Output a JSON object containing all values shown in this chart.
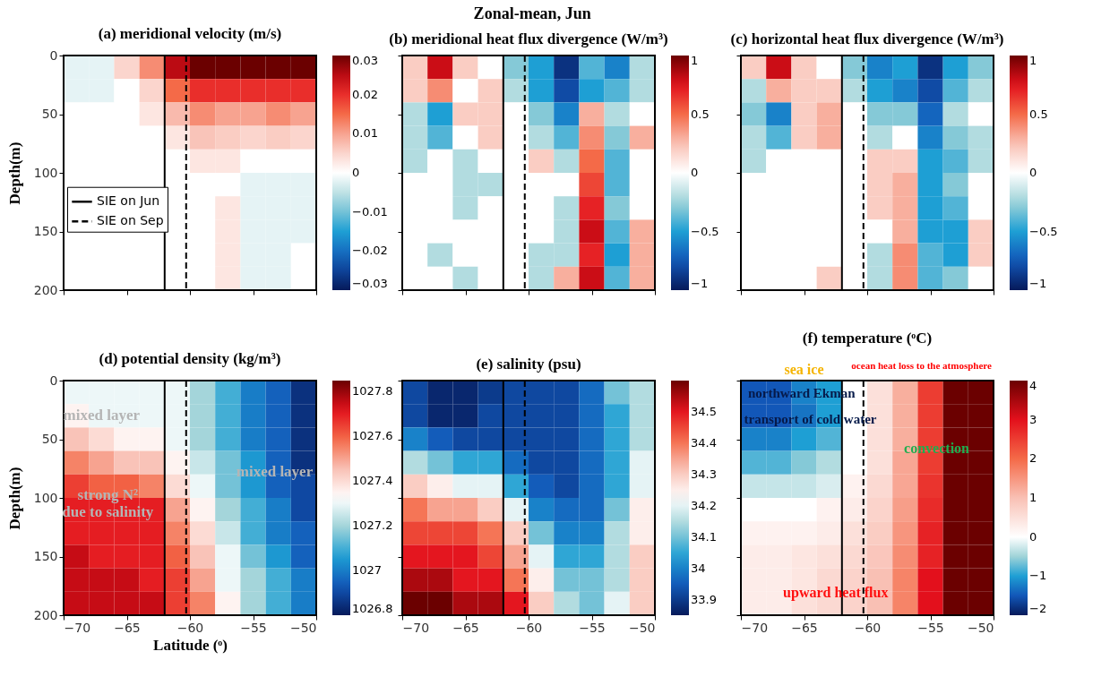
{
  "chart_data": [
    {
      "type": "other",
      "title": "Zonal-mean, Jun"
    },
    {
      "type": "heatmap",
      "title": "(a) meridional velocity (m/s)",
      "ylabel": "Depth(m)",
      "tick_labels": "y",
      "x": [
        -69,
        -67,
        -65,
        -63,
        -61,
        -59,
        -57,
        -55,
        -53,
        -51
      ],
      "y": [
        10,
        30,
        50,
        70,
        90,
        110,
        130,
        150,
        170,
        190
      ],
      "xlim": [
        -70,
        -50
      ],
      "xticks": [
        -70,
        -65,
        -60,
        -55,
        -50
      ],
      "ylim": [
        200,
        0
      ],
      "yticks": [
        0,
        50,
        100,
        150,
        200
      ],
      "clim": [
        -0.03,
        0.03
      ],
      "cticks": [
        -0.03,
        -0.02,
        -0.01,
        0,
        0.01,
        0.02,
        0.03
      ],
      "cells": [
        [
          -0.002,
          -0.002,
          0.005,
          0.012,
          0.025,
          0.03,
          0.03,
          0.03,
          0.03,
          0.03
        ],
        [
          -0.002,
          -0.002,
          0,
          0.005,
          0.015,
          0.02,
          0.02,
          0.02,
          0.02,
          0.02
        ],
        [
          0,
          0,
          0,
          0.003,
          0.008,
          0.012,
          0.01,
          0.01,
          0.012,
          0.01
        ],
        [
          0,
          0,
          0,
          0,
          0.003,
          0.007,
          0.006,
          0.005,
          0.006,
          0.005
        ],
        [
          0,
          0,
          0,
          0,
          0,
          0.003,
          0.003,
          0,
          0,
          0
        ],
        [
          0,
          0,
          0,
          0,
          0,
          0,
          0,
          -0.002,
          -0.002,
          -0.002
        ],
        [
          0,
          0,
          0,
          0,
          0,
          0,
          0.003,
          -0.002,
          -0.002,
          -0.002
        ],
        [
          0,
          0,
          0,
          0,
          0,
          0,
          0.003,
          -0.002,
          -0.002,
          -0.002
        ],
        [
          0,
          0,
          0,
          0,
          0,
          0,
          0.003,
          -0.002,
          -0.002,
          0
        ],
        [
          0,
          0,
          0,
          0,
          0,
          0,
          0.003,
          -0.002,
          -0.002,
          0
        ]
      ],
      "ref_lines": [
        {
          "axis": "x",
          "value": -62,
          "label": "SIE on Jun",
          "line_style": "solid"
        },
        {
          "axis": "x",
          "value": -60.3,
          "label": "SIE on Sep",
          "line_style": "dashed"
        }
      ]
    },
    {
      "type": "heatmap",
      "title": "(b) meridional heat flux divergence (W/m³)",
      "tick_labels": false,
      "x": [
        -69,
        -67,
        -65,
        -63,
        -61,
        -59,
        -57,
        -55,
        -53,
        -51
      ],
      "y": [
        10,
        30,
        50,
        70,
        90,
        110,
        130,
        150,
        170,
        190
      ],
      "xlim": [
        -70,
        -50
      ],
      "xticks": [
        -70,
        -65,
        -60,
        -55,
        -50
      ],
      "ylim": [
        200,
        0
      ],
      "yticks": [
        0,
        50,
        100,
        150,
        200
      ],
      "clim": [
        -1,
        1
      ],
      "cticks": [
        -1,
        -0.5,
        0,
        0.5,
        1
      ],
      "cells": [
        [
          0.2,
          0.8,
          0.2,
          0,
          -0.3,
          -0.5,
          -0.9,
          -0.4,
          -0.6,
          -0.2
        ],
        [
          0.2,
          0.4,
          0,
          0.2,
          -0.2,
          -0.5,
          -0.8,
          -0.5,
          -0.4,
          -0.2
        ],
        [
          -0.2,
          -0.5,
          0.2,
          0.2,
          0,
          -0.3,
          -0.6,
          0.3,
          -0.2,
          0
        ],
        [
          -0.2,
          -0.4,
          0,
          0.2,
          0,
          -0.2,
          -0.4,
          0.4,
          -0.3,
          0.3
        ],
        [
          -0.2,
          0,
          -0.2,
          0,
          0,
          0.2,
          -0.2,
          0.5,
          -0.4,
          0
        ],
        [
          0,
          0,
          -0.2,
          -0.2,
          0,
          0,
          0,
          0.6,
          -0.4,
          0
        ],
        [
          0,
          0,
          -0.2,
          0,
          0,
          0,
          -0.2,
          0.7,
          -0.3,
          0
        ],
        [
          0,
          0,
          0,
          0,
          0,
          0,
          -0.2,
          0.8,
          -0.4,
          0.3
        ],
        [
          0,
          -0.2,
          0,
          0,
          0,
          -0.2,
          -0.2,
          0.7,
          -0.5,
          0.3
        ],
        [
          0,
          0,
          -0.2,
          0,
          0,
          -0.2,
          0.3,
          0.8,
          -0.4,
          0.3
        ]
      ],
      "ref_lines": [
        {
          "axis": "x",
          "value": -62,
          "line_style": "solid"
        },
        {
          "axis": "x",
          "value": -60.3,
          "line_style": "dashed"
        }
      ]
    },
    {
      "type": "heatmap",
      "title": "(c) horizontal heat flux divergence (W/m³)",
      "tick_labels": false,
      "x": [
        -69,
        -67,
        -65,
        -63,
        -61,
        -59,
        -57,
        -55,
        -53,
        -51
      ],
      "y": [
        10,
        30,
        50,
        70,
        90,
        110,
        130,
        150,
        170,
        190
      ],
      "xlim": [
        -70,
        -50
      ],
      "xticks": [
        -70,
        -65,
        -60,
        -55,
        -50
      ],
      "ylim": [
        200,
        0
      ],
      "yticks": [
        0,
        50,
        100,
        150,
        200
      ],
      "clim": [
        -1,
        1
      ],
      "cticks": [
        -1,
        -0.5,
        0,
        0.5,
        1
      ],
      "cells": [
        [
          0.2,
          0.8,
          0.2,
          0,
          -0.3,
          -0.6,
          -0.5,
          -0.9,
          -0.5,
          -0.3
        ],
        [
          -0.2,
          0.3,
          0.2,
          0.2,
          -0.2,
          -0.5,
          -0.6,
          -0.8,
          -0.4,
          -0.2
        ],
        [
          -0.3,
          -0.6,
          0.2,
          0.3,
          0,
          -0.3,
          -0.3,
          -0.7,
          -0.2,
          0
        ],
        [
          -0.2,
          -0.4,
          0.2,
          0.3,
          0,
          -0.2,
          0,
          -0.6,
          -0.3,
          -0.2
        ],
        [
          -0.2,
          0,
          0,
          0,
          0,
          0.2,
          0.2,
          -0.5,
          -0.4,
          -0.2
        ],
        [
          0,
          0,
          0,
          0,
          0,
          0.2,
          0.3,
          -0.5,
          -0.3,
          0
        ],
        [
          0,
          0,
          0,
          0,
          0,
          0.2,
          0.3,
          -0.5,
          -0.4,
          0
        ],
        [
          0,
          0,
          0,
          0,
          0,
          0,
          0.3,
          -0.5,
          -0.5,
          0.2
        ],
        [
          0,
          0,
          0,
          0,
          0,
          -0.2,
          0.4,
          -0.4,
          -0.5,
          0.2
        ],
        [
          0,
          0,
          0,
          0.2,
          0,
          -0.2,
          0.4,
          -0.4,
          -0.3,
          0
        ]
      ],
      "ref_lines": [
        {
          "axis": "x",
          "value": -62,
          "line_style": "solid"
        },
        {
          "axis": "x",
          "value": -60.3,
          "line_style": "dashed"
        }
      ]
    },
    {
      "type": "heatmap",
      "title": "(d) potential density (kg/m³)",
      "xlabel": "Latitude (ᵒ)",
      "ylabel": "Depth(m)",
      "x": [
        -69,
        -67,
        -65,
        -63,
        -61,
        -59,
        -57,
        -55,
        -53,
        -51
      ],
      "y": [
        10,
        30,
        50,
        70,
        90,
        110,
        130,
        150,
        170,
        190
      ],
      "xlim": [
        -70,
        -50
      ],
      "xticks": [
        -70,
        -65,
        -60,
        -55,
        -50
      ],
      "ylim": [
        200,
        0
      ],
      "yticks": [
        0,
        50,
        100,
        150,
        200
      ],
      "clim": [
        1026.8,
        1027.85
      ],
      "cticks": [
        1026.8,
        1027,
        1027.2,
        1027.4,
        1027.6,
        1027.8
      ],
      "cells": [
        [
          1027.3,
          1027.3,
          1027.3,
          1027.3,
          1027.3,
          1027.2,
          1027.1,
          1027.0,
          1026.95,
          1026.85
        ],
        [
          1027.35,
          1027.3,
          1027.3,
          1027.3,
          1027.3,
          1027.2,
          1027.1,
          1027.0,
          1026.95,
          1026.85
        ],
        [
          1027.45,
          1027.4,
          1027.35,
          1027.35,
          1027.3,
          1027.2,
          1027.1,
          1027.0,
          1026.95,
          1026.85
        ],
        [
          1027.55,
          1027.5,
          1027.45,
          1027.45,
          1027.35,
          1027.25,
          1027.15,
          1027.05,
          1026.95,
          1026.85
        ],
        [
          1027.65,
          1027.6,
          1027.6,
          1027.55,
          1027.4,
          1027.3,
          1027.15,
          1027.05,
          1026.95,
          1026.9
        ],
        [
          1027.7,
          1027.7,
          1027.7,
          1027.7,
          1027.5,
          1027.35,
          1027.2,
          1027.1,
          1027.0,
          1026.9
        ],
        [
          1027.7,
          1027.7,
          1027.7,
          1027.7,
          1027.55,
          1027.4,
          1027.25,
          1027.1,
          1027.0,
          1026.95
        ],
        [
          1027.75,
          1027.7,
          1027.7,
          1027.7,
          1027.6,
          1027.45,
          1027.3,
          1027.15,
          1027.05,
          1026.95
        ],
        [
          1027.75,
          1027.75,
          1027.75,
          1027.7,
          1027.65,
          1027.5,
          1027.3,
          1027.2,
          1027.1,
          1027.0
        ],
        [
          1027.75,
          1027.75,
          1027.75,
          1027.75,
          1027.65,
          1027.55,
          1027.35,
          1027.2,
          1027.1,
          1027.0
        ]
      ],
      "ref_lines": [
        {
          "axis": "x",
          "value": -62,
          "line_style": "solid"
        },
        {
          "axis": "x",
          "value": -60.3,
          "line_style": "dashed"
        }
      ],
      "annotations": [
        "mixed layer",
        "mixed layer",
        "strong N²\ndue to salinity"
      ]
    },
    {
      "type": "heatmap",
      "title": "(e) salinity (psu)",
      "tick_labels": "x",
      "x": [
        -69,
        -67,
        -65,
        -63,
        -61,
        -59,
        -57,
        -55,
        -53,
        -51
      ],
      "y": [
        10,
        30,
        50,
        70,
        90,
        110,
        130,
        150,
        170,
        190
      ],
      "xlim": [
        -70,
        -50
      ],
      "xticks": [
        -70,
        -65,
        -60,
        -55,
        -50
      ],
      "ylim": [
        200,
        0
      ],
      "yticks": [
        0,
        50,
        100,
        150,
        200
      ],
      "clim": [
        33.85,
        34.6
      ],
      "cticks": [
        33.9,
        34,
        34.1,
        34.2,
        34.3,
        34.4,
        34.5
      ],
      "cells": [
        [
          33.92,
          33.87,
          33.87,
          33.9,
          33.92,
          33.92,
          33.92,
          33.97,
          34.1,
          34.15
        ],
        [
          33.92,
          33.87,
          33.87,
          33.92,
          33.92,
          33.92,
          33.92,
          33.97,
          34.05,
          34.15
        ],
        [
          34.0,
          33.95,
          33.92,
          33.92,
          33.92,
          33.92,
          33.92,
          33.97,
          34.05,
          34.15
        ],
        [
          34.15,
          34.1,
          34.05,
          34.05,
          33.97,
          33.92,
          33.92,
          33.97,
          34.05,
          34.2
        ],
        [
          34.3,
          34.25,
          34.2,
          34.2,
          34.05,
          33.95,
          33.92,
          33.97,
          34.05,
          34.2
        ],
        [
          34.4,
          34.35,
          34.35,
          34.3,
          34.2,
          34.0,
          33.97,
          33.97,
          34.1,
          34.25
        ],
        [
          34.45,
          34.45,
          34.45,
          34.4,
          34.3,
          34.1,
          34.0,
          34.0,
          34.15,
          34.25
        ],
        [
          34.5,
          34.5,
          34.5,
          34.45,
          34.35,
          34.2,
          34.05,
          34.05,
          34.15,
          34.3
        ],
        [
          34.55,
          34.55,
          34.5,
          34.5,
          34.4,
          34.25,
          34.1,
          34.1,
          34.15,
          34.3
        ],
        [
          34.6,
          34.6,
          34.55,
          34.55,
          34.5,
          34.3,
          34.15,
          34.1,
          34.2,
          34.3
        ]
      ],
      "ref_lines": [
        {
          "axis": "x",
          "value": -62,
          "line_style": "solid"
        },
        {
          "axis": "x",
          "value": -60.3,
          "line_style": "dashed"
        }
      ]
    },
    {
      "type": "heatmap",
      "title": "(f) temperature (ᵒC)",
      "tick_labels": "x",
      "x": [
        -69,
        -67,
        -65,
        -63,
        -61,
        -59,
        -57,
        -55,
        -53,
        -51
      ],
      "y": [
        10,
        30,
        50,
        70,
        90,
        110,
        130,
        150,
        170,
        190
      ],
      "xlim": [
        -70,
        -50
      ],
      "xticks": [
        -70,
        -65,
        -60,
        -55,
        -50
      ],
      "ylim": [
        200,
        0
      ],
      "yticks": [
        0,
        50,
        100,
        150,
        200
      ],
      "clim": [
        -2,
        4
      ],
      "cticks": [
        -2,
        -1,
        0,
        1,
        2,
        3,
        4
      ],
      "cells": [
        [
          -1.5,
          -1.5,
          -1.2,
          -1.0,
          0,
          0.5,
          1.2,
          2.5,
          4,
          4
        ],
        [
          -1.5,
          -1.5,
          -1.3,
          -1.0,
          0,
          0.5,
          1.2,
          2.5,
          4,
          4
        ],
        [
          -1.2,
          -1.2,
          -1,
          -0.8,
          0,
          0.5,
          1.2,
          2.5,
          4,
          4
        ],
        [
          -0.8,
          -0.8,
          -0.6,
          -0.4,
          0,
          0.5,
          1.3,
          2.5,
          4,
          4
        ],
        [
          -0.3,
          -0.3,
          -0.3,
          -0.2,
          0.2,
          0.6,
          1.3,
          2.6,
          4,
          4
        ],
        [
          0,
          0,
          0,
          0.2,
          0.3,
          0.7,
          1.4,
          2.7,
          4,
          4
        ],
        [
          0.2,
          0.2,
          0.2,
          0.3,
          0.5,
          0.8,
          1.5,
          2.8,
          4,
          4
        ],
        [
          0.3,
          0.3,
          0.4,
          0.5,
          0.6,
          0.9,
          1.6,
          2.8,
          4,
          4
        ],
        [
          0.3,
          0.3,
          0.4,
          0.6,
          0.7,
          1.0,
          1.7,
          3.0,
          4,
          4
        ],
        [
          0.3,
          0.3,
          0.5,
          0.6,
          0.7,
          1.0,
          1.7,
          3.0,
          4,
          4
        ]
      ],
      "ref_lines": [
        {
          "axis": "x",
          "value": -62,
          "line_style": "solid"
        },
        {
          "axis": "x",
          "value": -60.3,
          "line_style": "dashed"
        }
      ],
      "annotations": [
        "sea ice",
        "ocean heat loss to the atmosphere",
        "northward Ekman",
        "transport of cold water",
        "convection",
        "upward heat flux"
      ]
    }
  ]
}
